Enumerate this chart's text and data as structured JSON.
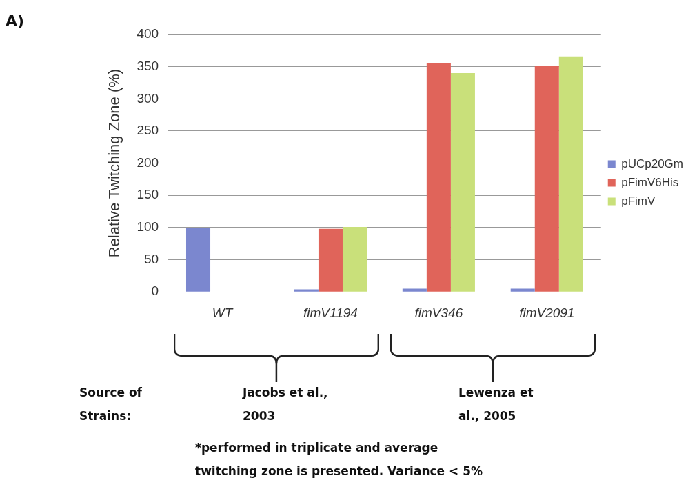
{
  "chart_data": {
    "type": "bar",
    "title": "A)",
    "ylabel": "Relative Twitching Zone (%)",
    "categories": [
      "WT",
      "fimV1194",
      "fimV346",
      "fimV2091"
    ],
    "series": [
      {
        "name": "pUCp20Gm",
        "color": "#7b87cf",
        "values": [
          100,
          4,
          5,
          5
        ]
      },
      {
        "name": "pFimV6His",
        "color": "#e0645a",
        "values": [
          null,
          98,
          355,
          351
        ]
      },
      {
        "name": "pFimV",
        "color": "#c9e07a",
        "values": [
          null,
          101,
          340,
          366
        ]
      }
    ],
    "ylim": [
      0,
      400
    ],
    "yticks": [
      0,
      50,
      100,
      150,
      200,
      250,
      300,
      350,
      400
    ],
    "grid": "y",
    "legend": "right",
    "annotations": [
      "Source of Strains:",
      "Jacobs et al., 2003",
      "Lewenza et al., 2005",
      "*performed in triplicate and average twitching zone is presented. Variance < 5%"
    ]
  }
}
